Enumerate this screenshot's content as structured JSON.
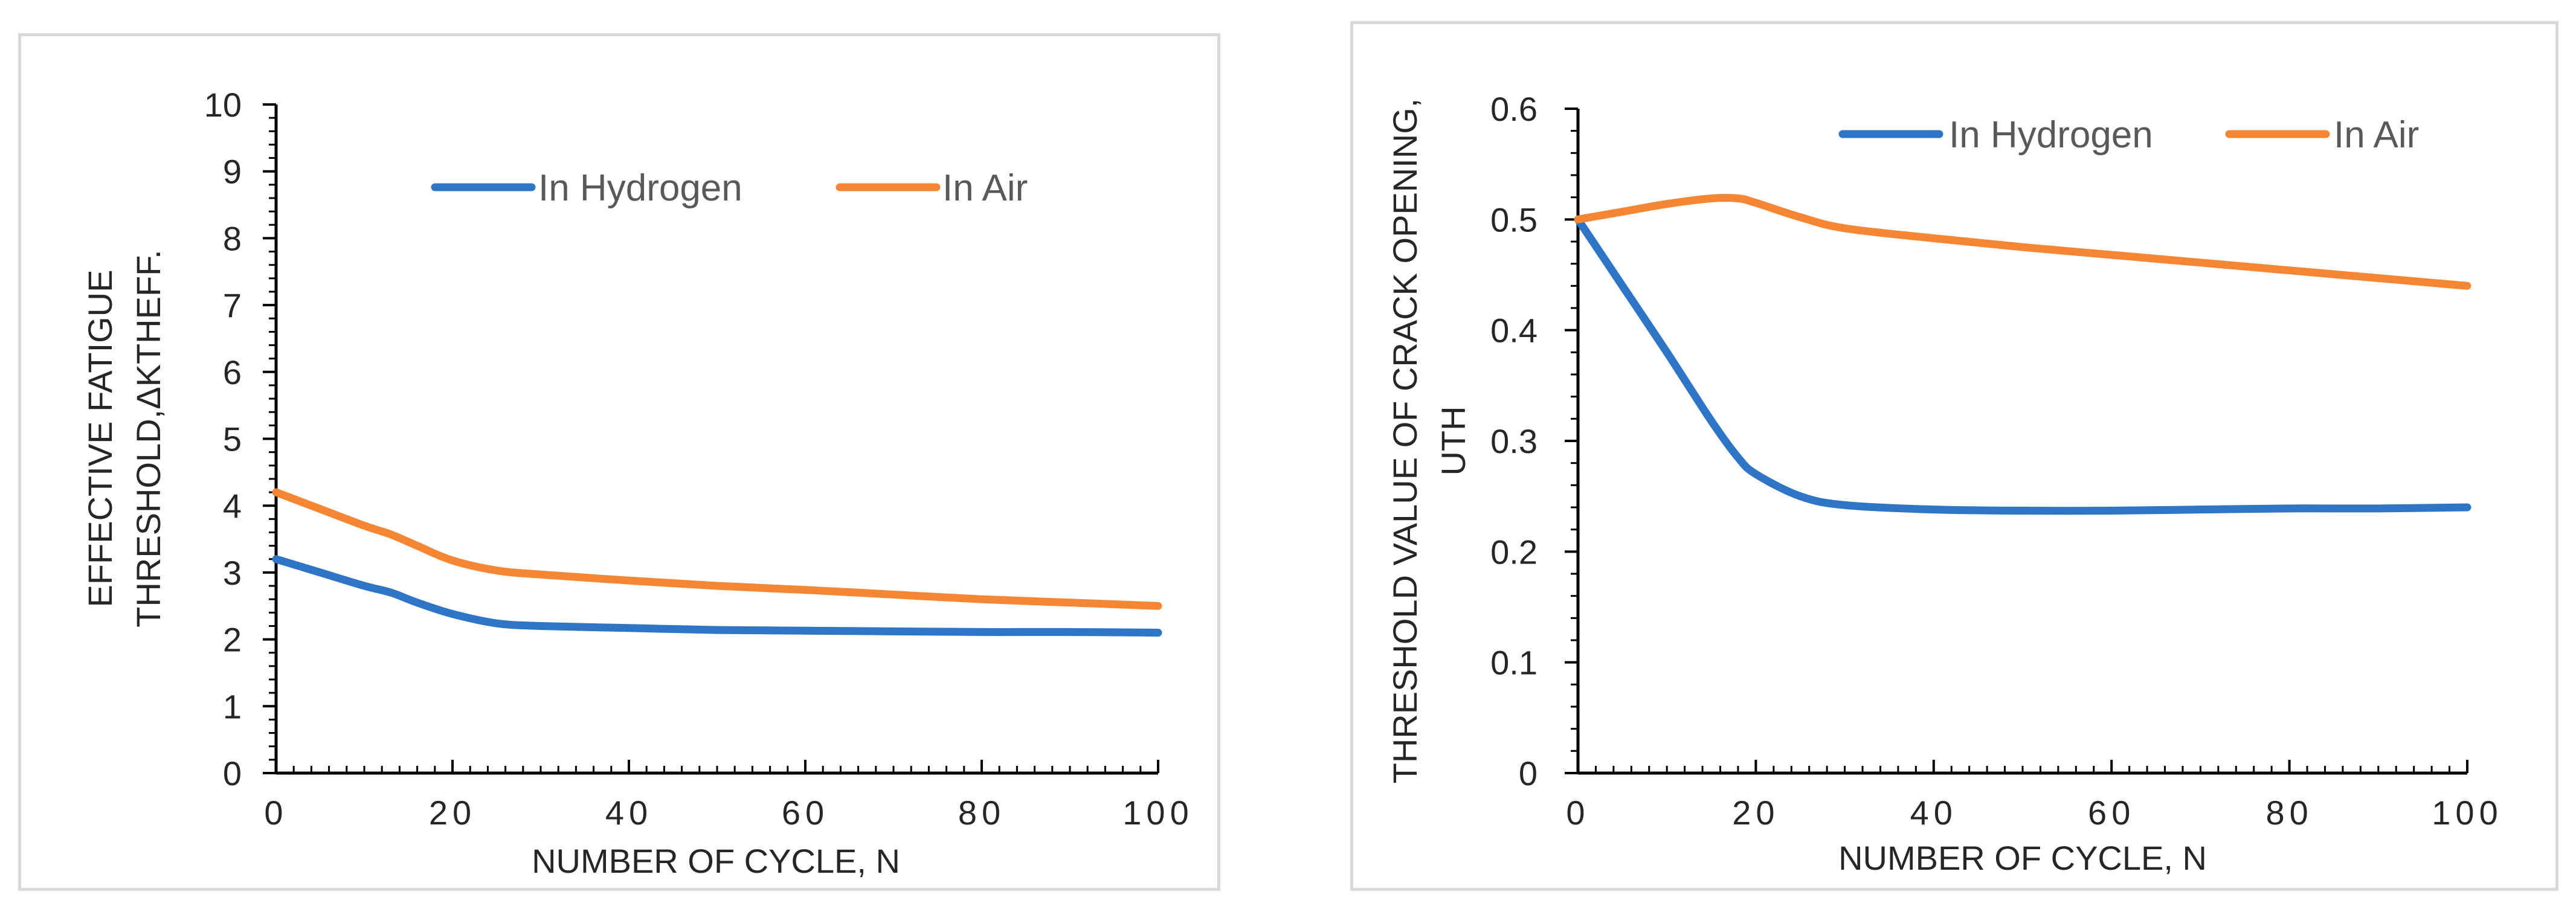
{
  "colors": {
    "hydrogen": "#2e75c6",
    "air": "#f58634",
    "axis": "#000000",
    "text": "#262626",
    "legend_text": "#595959",
    "border": "#d9d9d9"
  },
  "chart_data": [
    {
      "type": "line",
      "id": "left",
      "title": "",
      "xlabel": "NUMBER OF CYCLE, N",
      "ylabel_lines": [
        "EFFECTIVE FATIGUE",
        "THRESHOLD,ΔKTHEFF."
      ],
      "xlim": [
        0,
        100
      ],
      "ylim": [
        0,
        10
      ],
      "x_ticks": [
        0,
        20,
        40,
        60,
        80,
        100
      ],
      "x_tick_labels": [
        "0",
        "20",
        "40",
        "60",
        "80",
        "100"
      ],
      "y_ticks": [
        0,
        1,
        2,
        3,
        4,
        5,
        6,
        7,
        8,
        9,
        10
      ],
      "y_tick_labels": [
        "0",
        "1",
        "2",
        "3",
        "4",
        "5",
        "6",
        "7",
        "8",
        "9",
        "10"
      ],
      "x_minor_step": 2,
      "y_minor_step": 0.2,
      "legend": "top-center",
      "series": [
        {
          "name": "In Hydrogen",
          "color_key": "hydrogen",
          "x": [
            0,
            5,
            10,
            13,
            16,
            20,
            25,
            30,
            40,
            50,
            60,
            70,
            80,
            90,
            100
          ],
          "y": [
            3.2,
            3.0,
            2.8,
            2.7,
            2.55,
            2.38,
            2.24,
            2.2,
            2.17,
            2.14,
            2.13,
            2.12,
            2.11,
            2.11,
            2.1
          ]
        },
        {
          "name": "In Air",
          "color_key": "air",
          "x": [
            0,
            5,
            10,
            13,
            16,
            20,
            25,
            30,
            40,
            50,
            60,
            70,
            80,
            90,
            100
          ],
          "y": [
            4.2,
            3.95,
            3.7,
            3.57,
            3.4,
            3.18,
            3.03,
            2.97,
            2.88,
            2.8,
            2.74,
            2.67,
            2.6,
            2.55,
            2.5
          ]
        }
      ]
    },
    {
      "type": "line",
      "id": "right",
      "title": "",
      "xlabel": "NUMBER OF CYCLE, N",
      "ylabel_lines": [
        "THRESHOLD VALUE OF CRACK OPENING,",
        "UTH"
      ],
      "xlim": [
        0,
        100
      ],
      "ylim": [
        0,
        0.6
      ],
      "x_ticks": [
        0,
        20,
        40,
        60,
        80,
        100
      ],
      "x_tick_labels": [
        "0",
        "20",
        "40",
        "60",
        "80",
        "100"
      ],
      "y_ticks": [
        0,
        0.1,
        0.2,
        0.3,
        0.4,
        0.5,
        0.6
      ],
      "y_tick_labels": [
        "0",
        "0.1",
        "0.2",
        "0.3",
        "0.4",
        "0.5",
        "0.6"
      ],
      "x_minor_step": 2,
      "y_minor_step": 0.02,
      "legend": "top-right",
      "series": [
        {
          "name": "In Hydrogen",
          "color_key": "hydrogen",
          "x": [
            0,
            5,
            10,
            15,
            18,
            20,
            25,
            30,
            40,
            50,
            60,
            70,
            80,
            90,
            100
          ],
          "y": [
            0.5,
            0.44,
            0.38,
            0.318,
            0.285,
            0.27,
            0.25,
            0.242,
            0.238,
            0.237,
            0.237,
            0.238,
            0.239,
            0.239,
            0.24
          ]
        },
        {
          "name": "In Air",
          "color_key": "air",
          "x": [
            0,
            5,
            10,
            15,
            18,
            20,
            25,
            30,
            40,
            50,
            60,
            70,
            80,
            90,
            100
          ],
          "y": [
            0.5,
            0.507,
            0.514,
            0.519,
            0.519,
            0.515,
            0.502,
            0.492,
            0.483,
            0.475,
            0.468,
            0.461,
            0.454,
            0.447,
            0.44
          ]
        }
      ]
    }
  ]
}
